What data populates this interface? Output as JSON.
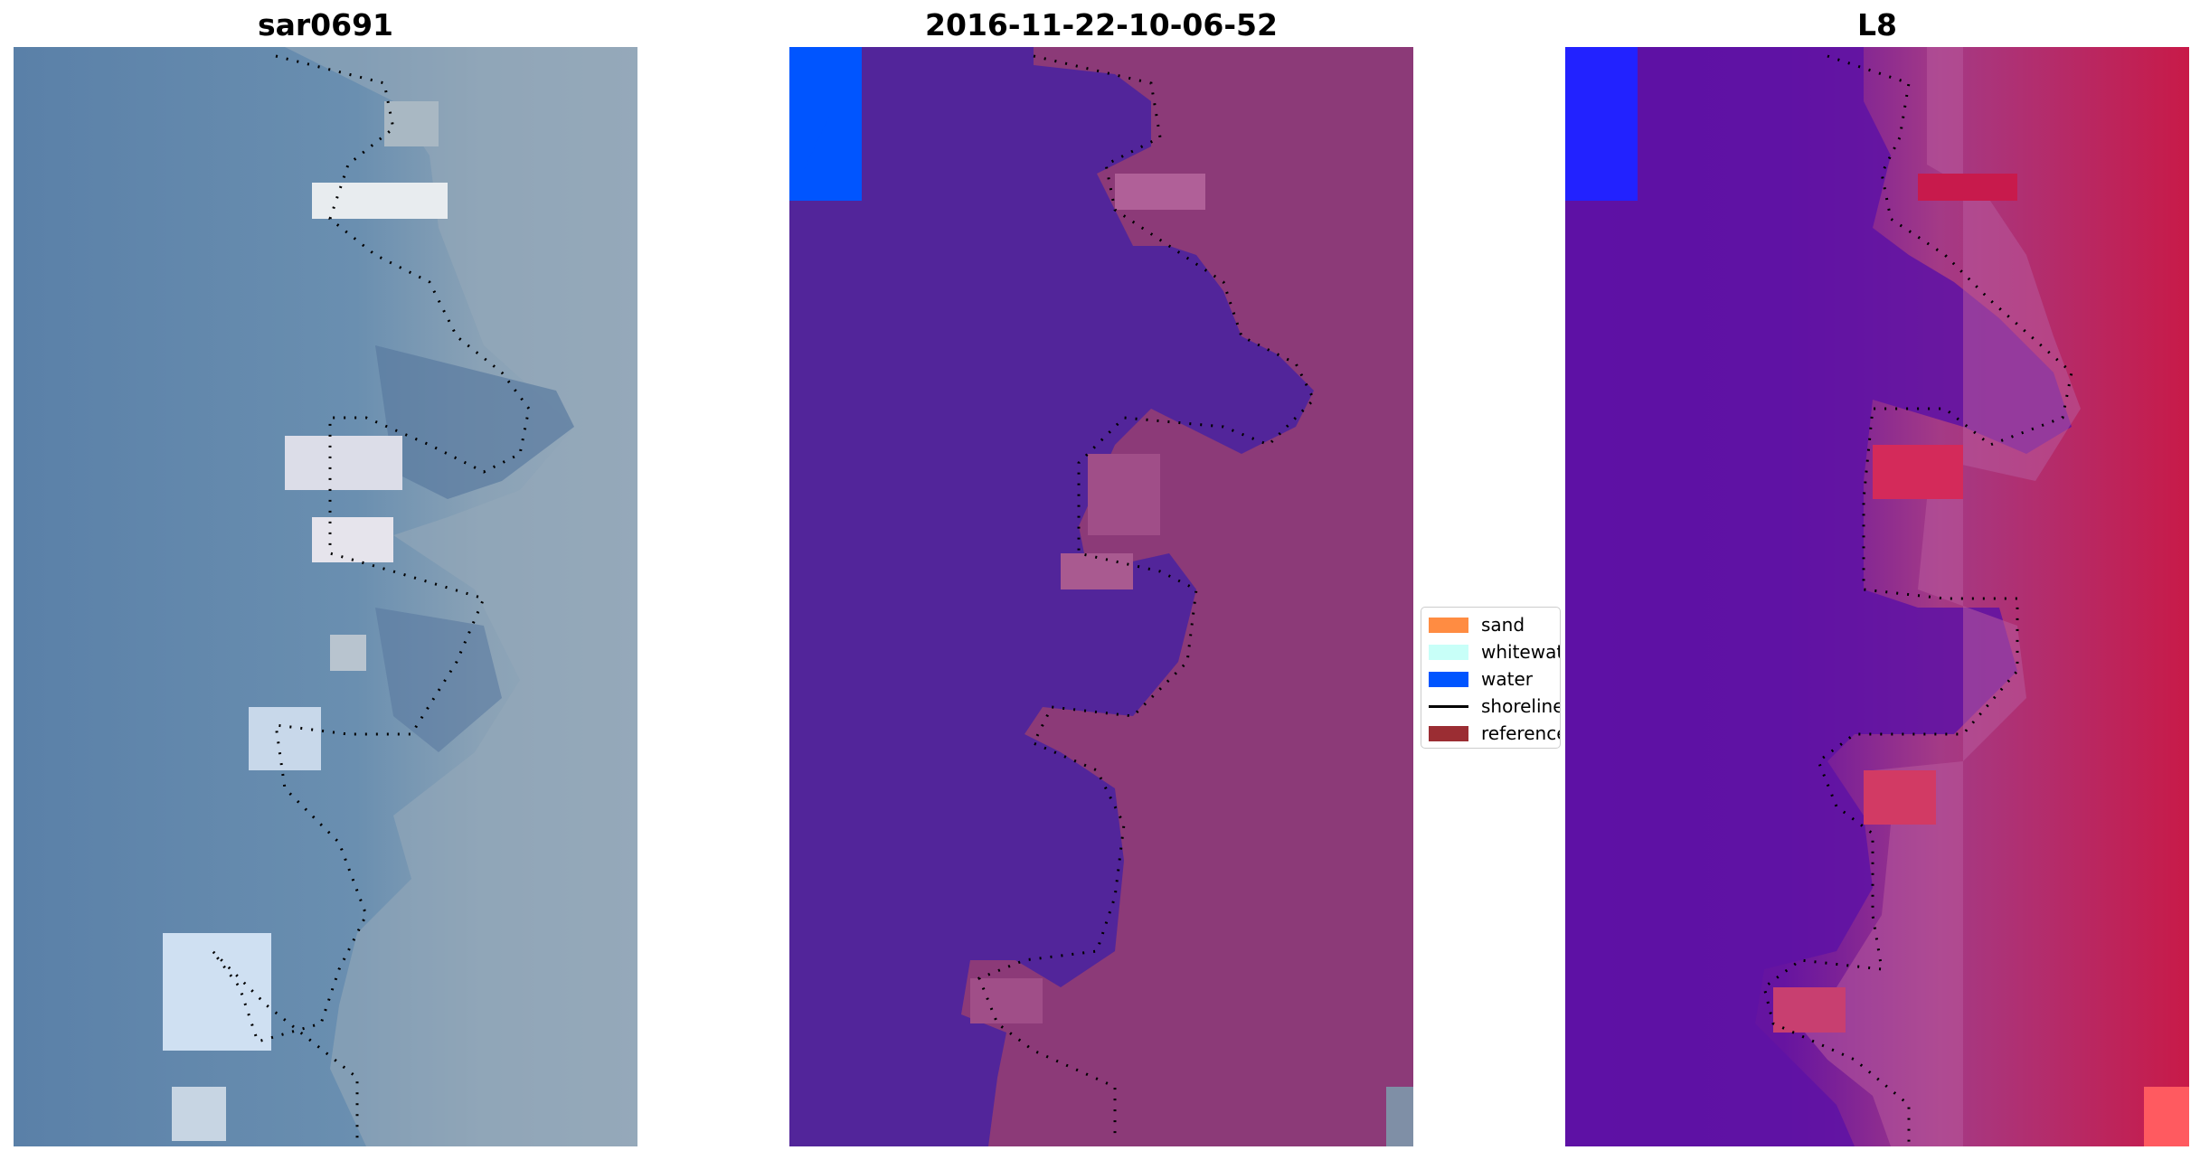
{
  "panels": [
    {
      "title": "sar0691"
    },
    {
      "title": "2016-11-22-10-06-52"
    },
    {
      "title": "L8"
    }
  ],
  "legend": {
    "items": [
      {
        "label": "sand",
        "color": "#ff8c42",
        "kind": "patch"
      },
      {
        "label": "whitewater",
        "color": "#c8fff8",
        "kind": "patch"
      },
      {
        "label": "water",
        "color": "#0055ff",
        "kind": "patch"
      },
      {
        "label": "shoreline",
        "color": "#000000",
        "kind": "line"
      },
      {
        "label": "reference",
        "color": "#9b2d33",
        "kind": "patch"
      }
    ]
  },
  "colors": {
    "rgb_water": "#5b84aa",
    "rgb_land": "#93a8b8",
    "class_water": "#52259a",
    "class_land": "#8c3a78",
    "class_blue": "#0055ff",
    "index_water": "#5e12a4",
    "index_land": "#c01c4c",
    "shoreline_dots": "#000000"
  }
}
